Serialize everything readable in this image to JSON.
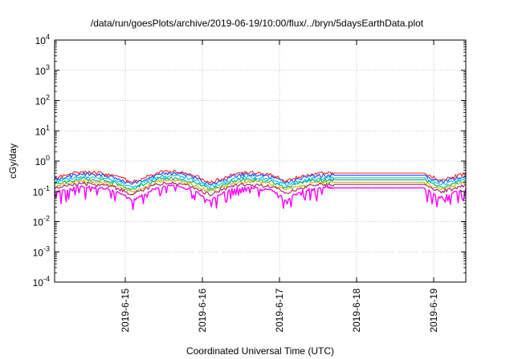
{
  "chart_data": {
    "type": "line",
    "title": "/data/run/goesPlots/archive/2019-06-19/10:00/flux/../bryn/5daysEarthData.plot",
    "xlabel": "Coordinated Universal Time (UTC)",
    "ylabel": "cGy/day",
    "y_scale": "log",
    "ylim": [
      0.0001,
      10000
    ],
    "xlim": [
      "2019-06-14 02:00",
      "2019-06-19 10:00"
    ],
    "grid": "dotted, major ticks",
    "legend": "none",
    "x_ticks": [
      "2019-6-15",
      "2019-6-16",
      "2019-6-17",
      "2019-6-18",
      "2019-6-19"
    ],
    "y_ticks": [
      {
        "value": 0.0001,
        "base": "10",
        "exp": "-4"
      },
      {
        "value": 0.001,
        "base": "10",
        "exp": "-3"
      },
      {
        "value": 0.01,
        "base": "10",
        "exp": "-2"
      },
      {
        "value": 0.1,
        "base": "10",
        "exp": "-1"
      },
      {
        "value": 1,
        "base": "10",
        "exp": "0"
      },
      {
        "value": 10,
        "base": "10",
        "exp": "1"
      },
      {
        "value": 100,
        "base": "10",
        "exp": "2"
      },
      {
        "value": 1000,
        "base": "10",
        "exp": "3"
      },
      {
        "value": 10000,
        "base": "10",
        "exp": "4"
      }
    ],
    "data_gap": {
      "from": "2019-06-17 17:00",
      "to": "2019-06-18 21:00"
    },
    "x": [
      "2019-06-14 02:00",
      "2019-06-14 06:00",
      "2019-06-14 10:00",
      "2019-06-14 14:00",
      "2019-06-14 18:00",
      "2019-06-14 22:00",
      "2019-06-15 02:00",
      "2019-06-15 06:00",
      "2019-06-15 10:00",
      "2019-06-15 14:00",
      "2019-06-15 18:00",
      "2019-06-15 22:00",
      "2019-06-16 02:00",
      "2019-06-16 06:00",
      "2019-06-16 10:00",
      "2019-06-16 14:00",
      "2019-06-16 18:00",
      "2019-06-16 22:00",
      "2019-06-17 02:00",
      "2019-06-17 06:00",
      "2019-06-17 10:00",
      "2019-06-17 14:00",
      "2019-06-17 17:00",
      "2019-06-18 21:00",
      "2019-06-19 02:00",
      "2019-06-19 06:00",
      "2019-06-19 10:00"
    ],
    "series": [
      {
        "color": "#ff2020",
        "values": [
          0.28,
          0.36,
          0.44,
          0.42,
          0.38,
          0.3,
          0.2,
          0.28,
          0.42,
          0.46,
          0.42,
          0.32,
          0.2,
          0.26,
          0.38,
          0.42,
          0.4,
          0.34,
          0.22,
          0.3,
          0.38,
          0.4,
          0.4,
          0.4,
          0.24,
          0.3,
          0.4
        ]
      },
      {
        "color": "#2040ff",
        "values": [
          0.24,
          0.31,
          0.38,
          0.36,
          0.33,
          0.26,
          0.17,
          0.24,
          0.36,
          0.4,
          0.36,
          0.28,
          0.17,
          0.22,
          0.33,
          0.36,
          0.34,
          0.29,
          0.19,
          0.26,
          0.33,
          0.34,
          0.34,
          0.34,
          0.21,
          0.26,
          0.34
        ]
      },
      {
        "color": "#00c0ff",
        "values": [
          0.2,
          0.26,
          0.31,
          0.3,
          0.27,
          0.21,
          0.14,
          0.2,
          0.3,
          0.33,
          0.3,
          0.23,
          0.14,
          0.18,
          0.27,
          0.3,
          0.28,
          0.24,
          0.16,
          0.21,
          0.27,
          0.28,
          0.28,
          0.28,
          0.17,
          0.21,
          0.28
        ]
      },
      {
        "color": "#00b070",
        "values": [
          0.17,
          0.22,
          0.26,
          0.25,
          0.23,
          0.18,
          0.12,
          0.17,
          0.25,
          0.28,
          0.25,
          0.19,
          0.12,
          0.15,
          0.23,
          0.25,
          0.24,
          0.2,
          0.13,
          0.18,
          0.23,
          0.24,
          0.24,
          0.24,
          0.14,
          0.18,
          0.24
        ]
      },
      {
        "color": "#c8b400",
        "values": [
          0.14,
          0.18,
          0.22,
          0.21,
          0.19,
          0.15,
          0.1,
          0.14,
          0.21,
          0.23,
          0.21,
          0.16,
          0.1,
          0.13,
          0.19,
          0.21,
          0.2,
          0.17,
          0.11,
          0.15,
          0.19,
          0.2,
          0.2,
          0.2,
          0.12,
          0.15,
          0.2
        ]
      },
      {
        "color": "#a02060",
        "values": [
          0.12,
          0.15,
          0.18,
          0.17,
          0.16,
          0.12,
          0.08,
          0.12,
          0.17,
          0.19,
          0.17,
          0.13,
          0.08,
          0.11,
          0.16,
          0.17,
          0.16,
          0.14,
          0.09,
          0.12,
          0.16,
          0.17,
          0.17,
          0.17,
          0.1,
          0.12,
          0.17
        ]
      },
      {
        "color": "#ff00ff",
        "values": [
          0.09,
          0.11,
          0.14,
          0.13,
          0.12,
          0.09,
          0.05,
          0.08,
          0.13,
          0.15,
          0.13,
          0.1,
          0.05,
          0.08,
          0.12,
          0.13,
          0.12,
          0.1,
          0.05,
          0.09,
          0.12,
          0.13,
          0.13,
          0.13,
          0.06,
          0.09,
          0.13
        ]
      }
    ]
  }
}
